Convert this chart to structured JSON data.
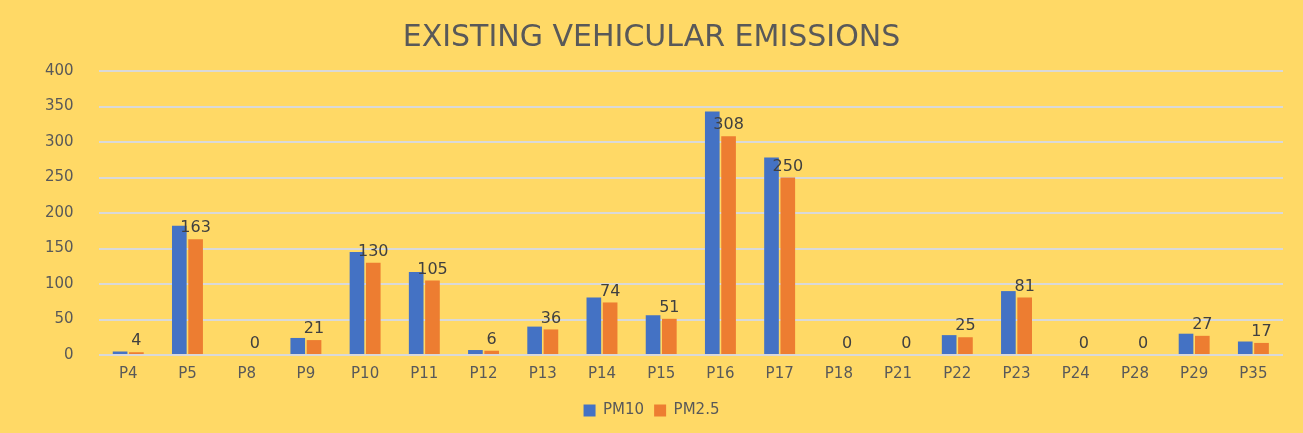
{
  "chart_data": {
    "type": "bar",
    "title": "EXISTING VEHICULAR EMISSIONS",
    "categories": [
      "P4",
      "P5",
      "P8",
      "P9",
      "P10",
      "P11",
      "P12",
      "P13",
      "P14",
      "P15",
      "P16",
      "P17",
      "P18",
      "P21",
      "P22",
      "P23",
      "P24",
      "P28",
      "P29",
      "P35"
    ],
    "series": [
      {
        "name": "PM10",
        "color": "#4472c4",
        "values": [
          5,
          182,
          0,
          24,
          145,
          117,
          7,
          40,
          81,
          56,
          343,
          278,
          0,
          0,
          28,
          90,
          0,
          0,
          30,
          19
        ]
      },
      {
        "name": "PM2.5",
        "color": "#ed7d31",
        "values": [
          4,
          163,
          0,
          21,
          130,
          105,
          6,
          36,
          74,
          51,
          308,
          250,
          0,
          0,
          25,
          81,
          0,
          0,
          27,
          17
        ],
        "value_labels": [
          "4",
          "163",
          "0",
          "21",
          "130",
          "105",
          "6",
          "36",
          "74",
          "51",
          "308",
          "250",
          "0",
          "0",
          "25",
          "81",
          "0",
          "0",
          "27",
          "17"
        ]
      }
    ],
    "ylim": [
      0,
      400
    ],
    "yticks": [
      0,
      50,
      100,
      150,
      200,
      250,
      300,
      350,
      400
    ],
    "grid": "y",
    "legend": "bottom"
  }
}
